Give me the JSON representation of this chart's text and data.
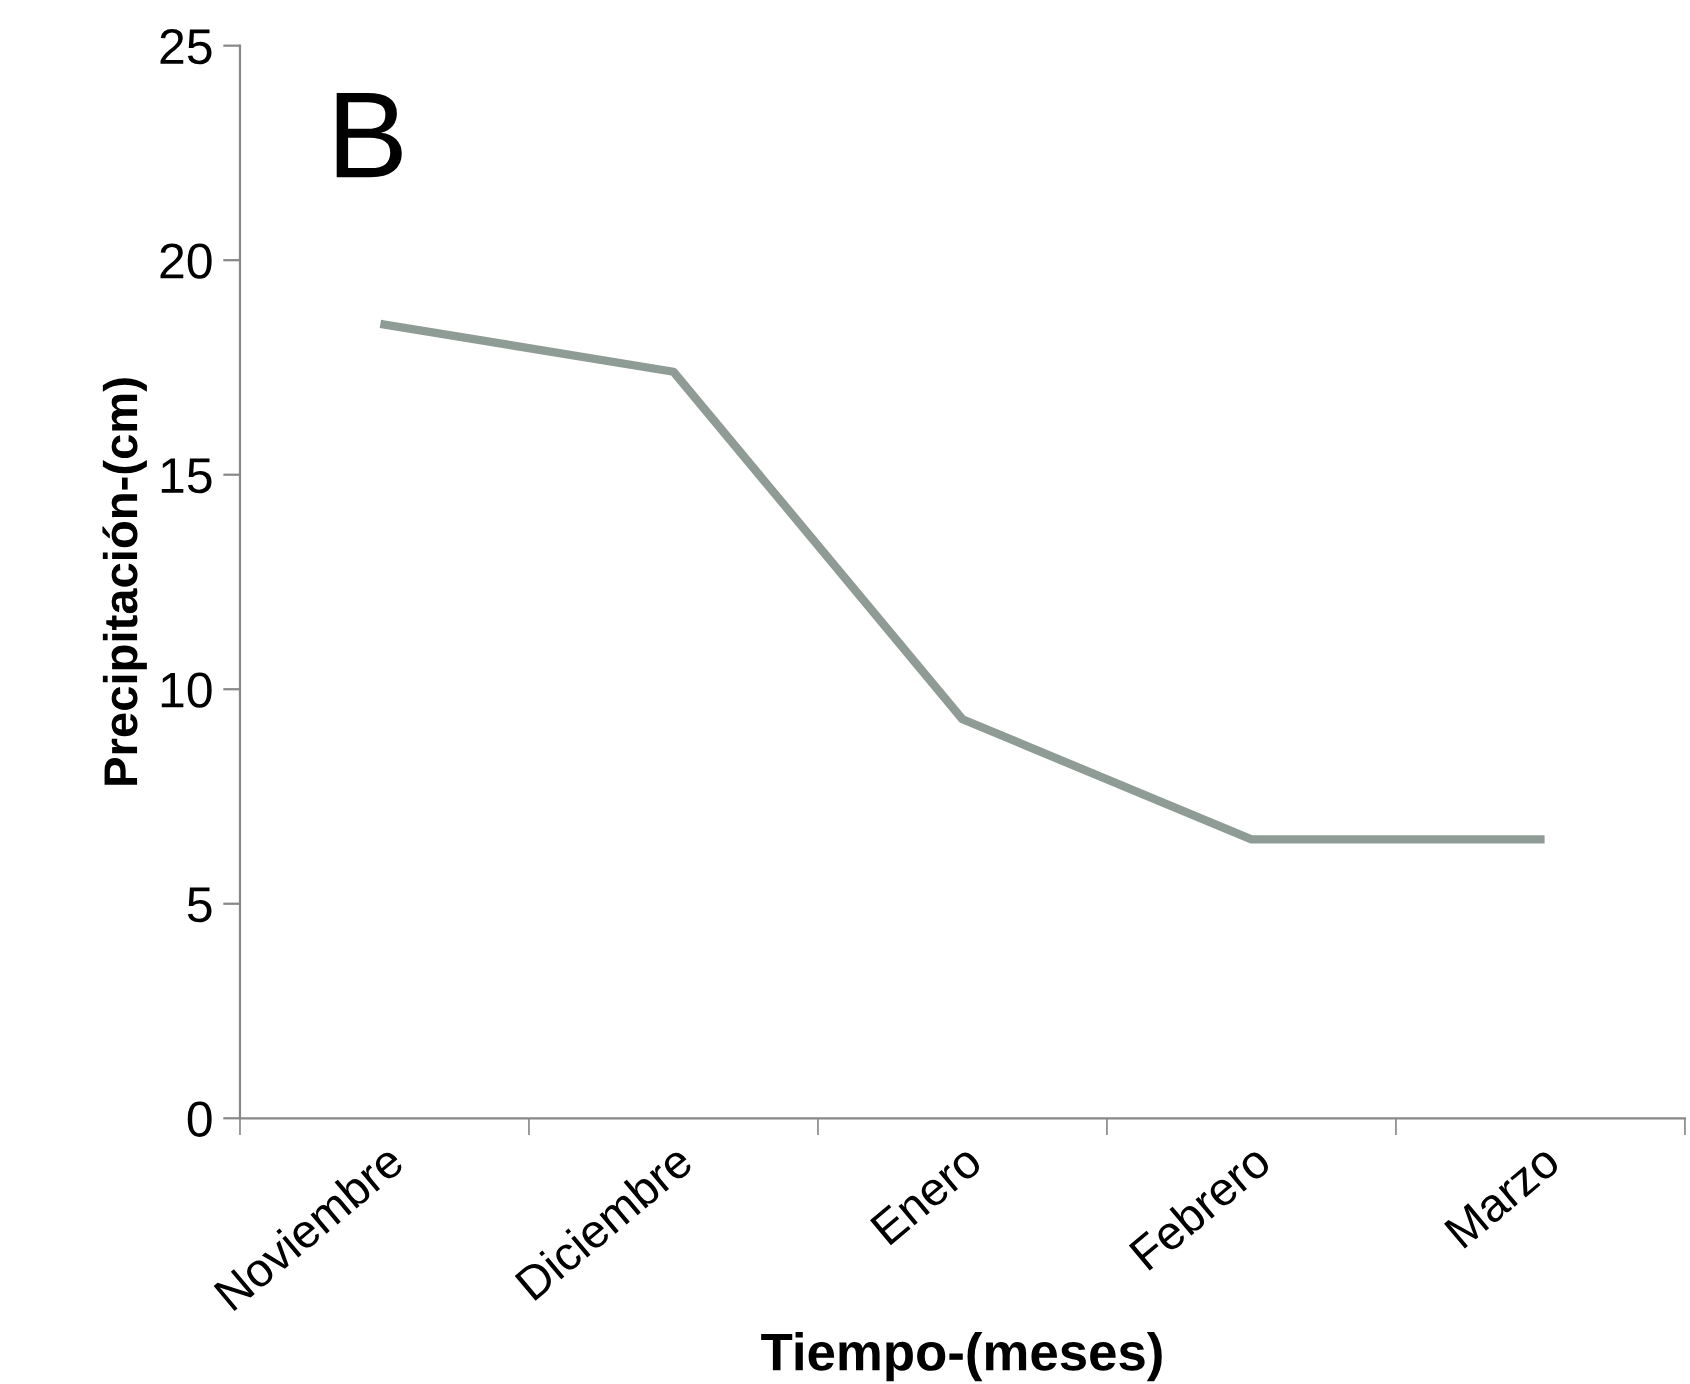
{
  "chart_data": {
    "type": "line",
    "xlabel": "Tiempo-(meses)",
    "ylabel": "Precipitación-(cm)",
    "annotations": [
      "B"
    ],
    "categories": [
      "Noviembre",
      "Diciembre",
      "Enero",
      "Febrero",
      "Marzo"
    ],
    "series": [
      {
        "color": "#8f9c96",
        "values": [
          18.5,
          17.4,
          9.3,
          6.5,
          6.5
        ]
      }
    ],
    "ylim": [
      0,
      25
    ],
    "yticks": [
      0,
      5,
      10,
      15,
      20,
      25
    ],
    "grid": false,
    "legend": false,
    "marker": "none",
    "line_style": "solid"
  }
}
